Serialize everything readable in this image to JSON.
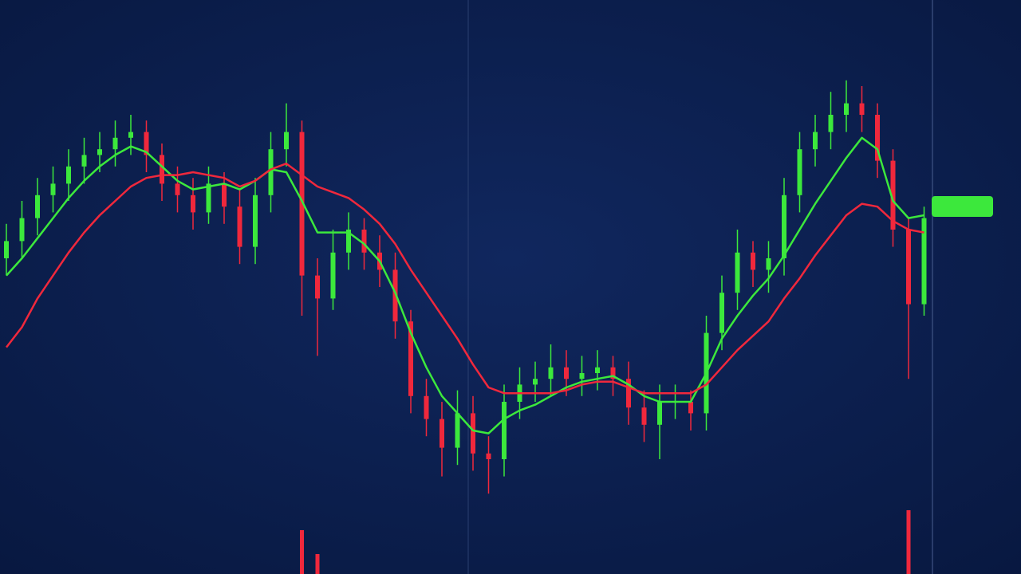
{
  "chart_data": {
    "type": "candlestick",
    "ylim": [
      0,
      100
    ],
    "up_color": "#3ce83c",
    "down_color": "#f0283c",
    "open": [
      55,
      58,
      62,
      66,
      68,
      71,
      73,
      74,
      76,
      77,
      73,
      68,
      66,
      63,
      68,
      64,
      57,
      66,
      74,
      77,
      52,
      48,
      56,
      60,
      56,
      53,
      44,
      31,
      27,
      22,
      28,
      21,
      20,
      30,
      33,
      34,
      36,
      34,
      35,
      36,
      34,
      29,
      26,
      30,
      30,
      28,
      42,
      49,
      56,
      53,
      55,
      66,
      74,
      77,
      80,
      82,
      80,
      72,
      60,
      47
    ],
    "high": [
      61,
      65,
      69,
      71,
      74,
      76,
      77,
      79,
      80,
      79,
      75,
      71,
      69,
      71,
      70,
      67,
      69,
      77,
      82,
      79,
      55,
      60,
      63,
      62,
      59,
      56,
      46,
      34,
      30,
      32,
      31,
      24,
      33,
      36,
      37,
      40,
      39,
      38,
      39,
      38,
      37,
      32,
      33,
      33,
      32,
      45,
      52,
      60,
      58,
      58,
      69,
      77,
      80,
      84,
      86,
      85,
      82,
      74,
      62,
      64
    ],
    "low": [
      52,
      55,
      59,
      63,
      65,
      68,
      70,
      71,
      73,
      70,
      65,
      63,
      60,
      61,
      61,
      54,
      54,
      63,
      71,
      45,
      38,
      46,
      53,
      53,
      50,
      41,
      28,
      24,
      17,
      19,
      18,
      14,
      17,
      27,
      30,
      31,
      31,
      31,
      32,
      31,
      26,
      23,
      20,
      27,
      25,
      25,
      39,
      46,
      50,
      49,
      52,
      63,
      71,
      74,
      77,
      77,
      69,
      57,
      34,
      45
    ],
    "close": [
      58,
      62,
      66,
      68,
      71,
      73,
      74,
      76,
      77,
      73,
      68,
      66,
      63,
      68,
      64,
      57,
      66,
      74,
      77,
      52,
      48,
      56,
      60,
      56,
      53,
      44,
      31,
      27,
      22,
      28,
      21,
      20,
      30,
      33,
      34,
      36,
      34,
      35,
      36,
      34,
      29,
      26,
      30,
      30,
      28,
      42,
      49,
      56,
      53,
      55,
      66,
      74,
      77,
      80,
      82,
      80,
      72,
      60,
      47,
      62
    ],
    "lines": [
      {
        "color": "#3ce83c",
        "values": [
          52,
          55,
          58.5,
          62,
          65.5,
          68.5,
          71,
          73,
          74.5,
          73.5,
          71,
          68.5,
          67,
          67.5,
          68,
          67,
          68.5,
          70.5,
          70,
          65,
          59.5,
          59.5,
          59.5,
          57.5,
          54.5,
          49,
          42,
          36,
          31,
          28,
          25,
          24.5,
          27,
          28.5,
          29.5,
          31,
          32.5,
          33.5,
          34,
          34.5,
          33,
          31,
          30,
          30,
          30,
          35,
          41,
          45,
          48.5,
          51.5,
          55.5,
          60,
          64.5,
          68.5,
          72.5,
          76,
          74,
          65,
          62,
          62.5
        ]
      },
      {
        "color": "#f0283c",
        "values": [
          39.5,
          43,
          48,
          52,
          56,
          59.5,
          62.5,
          65,
          67.5,
          69,
          69.5,
          69.5,
          70,
          69.5,
          69,
          67.5,
          68.5,
          70.5,
          71.5,
          69.5,
          67.5,
          66.5,
          65.5,
          63.5,
          61,
          57.5,
          53,
          49,
          45,
          41,
          36.5,
          32.5,
          31.5,
          31.5,
          31.5,
          31.5,
          32,
          33,
          33.5,
          33.5,
          32.5,
          31.5,
          31.5,
          31.5,
          31.5,
          33,
          36,
          39,
          41.5,
          44,
          48,
          51.5,
          55.5,
          59,
          62.5,
          64.5,
          64,
          61.5,
          60,
          59.5
        ]
      }
    ],
    "volume_ylim": [
      0,
      100
    ],
    "volume": [
      null,
      null,
      null,
      null,
      null,
      null,
      null,
      null,
      null,
      null,
      null,
      null,
      null,
      null,
      null,
      null,
      null,
      null,
      null,
      55,
      25,
      null,
      null,
      null,
      null,
      null,
      null,
      null,
      null,
      null,
      null,
      null,
      null,
      null,
      null,
      null,
      null,
      null,
      null,
      null,
      null,
      null,
      null,
      null,
      null,
      null,
      null,
      null,
      null,
      null,
      null,
      null,
      null,
      null,
      null,
      null,
      null,
      null,
      80,
      null
    ]
  }
}
